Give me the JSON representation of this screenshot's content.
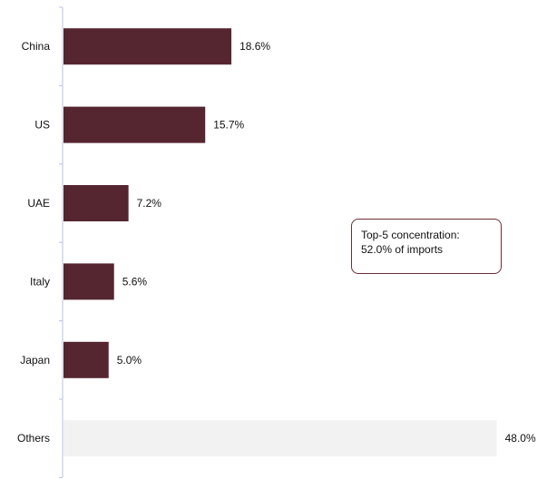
{
  "chart_data": {
    "type": "bar",
    "orientation": "horizontal",
    "categories": [
      "China",
      "US",
      "UAE",
      "Italy",
      "Japan",
      "Others"
    ],
    "values": [
      18.6,
      15.7,
      7.2,
      5.6,
      5.0,
      48.0
    ],
    "value_labels": [
      "18.6%",
      "15.7%",
      "7.2%",
      "5.6%",
      "5.0%",
      "48.0%"
    ],
    "xlim": [
      0,
      48.0
    ],
    "grid": false,
    "colors": {
      "top5_bar": "#552530",
      "others_bar": "#f2f2f2",
      "axis": "#b9c3dc",
      "callout_border": "#6b2e35"
    },
    "annotation": {
      "line1": "Top-5 concentration:",
      "line2": "52.0% of imports"
    }
  }
}
